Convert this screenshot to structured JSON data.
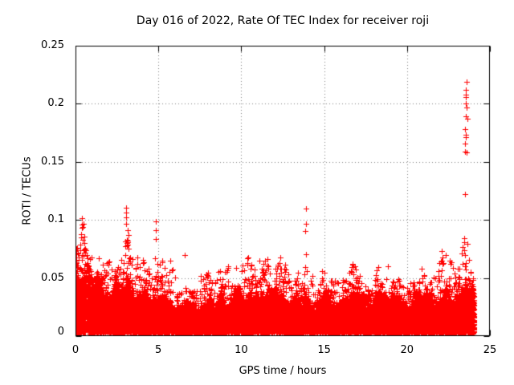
{
  "figure": {
    "background": "#ffffff",
    "border_color": "#000000",
    "grid_color": "#808080",
    "text_color": "#000000"
  },
  "chart_data": {
    "type": "scatter",
    "title": "Day 016 of 2022, Rate Of TEC Index for receiver roji",
    "xlabel": "GPS time / hours",
    "ylabel": "ROTI / TECUs",
    "xlim": [
      0,
      25
    ],
    "ylim": [
      0,
      0.25
    ],
    "xticks": [
      0,
      5,
      10,
      15,
      20,
      25
    ],
    "yticks": [
      0,
      0.05,
      0.1,
      0.15,
      0.2,
      0.25
    ],
    "grid": "dotted at inner major ticks",
    "legend": "none",
    "marker": {
      "shape": "plus",
      "size": 7,
      "color": "#ff0000"
    },
    "series_name": "ROTI",
    "time_range_hours": [
      0,
      24.06
    ],
    "band": {
      "description": "Dense band of ROTI samples; core_top = top of solid band, spike_top = typical max of sparse points above band, per 0.5 h from 0 to 24 h.",
      "hours_step": 0.5,
      "base": 0.003,
      "core_top": [
        0.056,
        0.05,
        0.045,
        0.041,
        0.038,
        0.037,
        0.044,
        0.04,
        0.035,
        0.032,
        0.031,
        0.029,
        0.028,
        0.028,
        0.027,
        0.027,
        0.028,
        0.029,
        0.029,
        0.031,
        0.032,
        0.033,
        0.033,
        0.035,
        0.034,
        0.032,
        0.03,
        0.031,
        0.03,
        0.028,
        0.03,
        0.028,
        0.029,
        0.031,
        0.032,
        0.03,
        0.03,
        0.029,
        0.028,
        0.028,
        0.027,
        0.028,
        0.029,
        0.029,
        0.033,
        0.033,
        0.031,
        0.035,
        0.034
      ],
      "spike_top": [
        0.095,
        0.085,
        0.068,
        0.062,
        0.058,
        0.056,
        0.09,
        0.068,
        0.058,
        0.06,
        0.062,
        0.052,
        0.05,
        0.048,
        0.044,
        0.046,
        0.048,
        0.05,
        0.048,
        0.056,
        0.058,
        0.06,
        0.06,
        0.065,
        0.06,
        0.06,
        0.05,
        0.052,
        0.055,
        0.048,
        0.056,
        0.048,
        0.052,
        0.06,
        0.058,
        0.052,
        0.054,
        0.056,
        0.048,
        0.054,
        0.048,
        0.05,
        0.056,
        0.052,
        0.073,
        0.06,
        0.058,
        0.074,
        0.052
      ]
    },
    "outliers": [
      [
        0.15,
        0.072
      ],
      [
        0.28,
        0.079
      ],
      [
        0.32,
        0.088
      ],
      [
        0.36,
        0.085
      ],
      [
        0.39,
        0.1015
      ],
      [
        0.4,
        0.096
      ],
      [
        0.41,
        0.093
      ],
      [
        0.45,
        0.083
      ],
      [
        0.52,
        0.08
      ],
      [
        0.6,
        0.075
      ],
      [
        0.7,
        0.07
      ],
      [
        0.85,
        0.066
      ],
      [
        0.95,
        0.068
      ],
      [
        1.4,
        0.067
      ],
      [
        1.65,
        0.0615
      ],
      [
        3.06,
        0.1105
      ],
      [
        3.06,
        0.1063
      ],
      [
        3.06,
        0.1022
      ],
      [
        3.06,
        0.0967
      ],
      [
        3.16,
        0.091
      ],
      [
        3.2,
        0.087
      ],
      [
        3.12,
        0.083
      ],
      [
        3.1,
        0.078
      ],
      [
        3.22,
        0.075
      ],
      [
        3.0,
        0.07
      ],
      [
        3.3,
        0.068
      ],
      [
        3.18,
        0.064
      ],
      [
        4.86,
        0.0988
      ],
      [
        4.86,
        0.0912
      ],
      [
        4.86,
        0.0836
      ],
      [
        4.8,
        0.067
      ],
      [
        4.95,
        0.062
      ],
      [
        5.73,
        0.065
      ],
      [
        6.6,
        0.07
      ],
      [
        9.7,
        0.0585
      ],
      [
        10.6,
        0.0615
      ],
      [
        11.1,
        0.065
      ],
      [
        11.6,
        0.066
      ],
      [
        12.2,
        0.06
      ],
      [
        13.8,
        0.053
      ],
      [
        13.85,
        0.0594
      ],
      [
        13.88,
        0.0905
      ],
      [
        13.9,
        0.1098
      ],
      [
        13.9,
        0.0967
      ],
      [
        13.91,
        0.0704
      ],
      [
        13.95,
        0.056
      ],
      [
        16.7,
        0.062
      ],
      [
        18.85,
        0.06
      ],
      [
        22.05,
        0.064
      ],
      [
        22.1,
        0.073
      ],
      [
        22.15,
        0.068
      ],
      [
        23.45,
        0.074
      ],
      [
        23.5,
        0.07
      ],
      [
        23.49,
        0.159
      ],
      [
        23.5,
        0.166
      ],
      [
        23.52,
        0.122
      ],
      [
        23.52,
        0.178
      ],
      [
        23.55,
        0.2
      ],
      [
        23.55,
        0.189
      ],
      [
        23.55,
        0.173
      ],
      [
        23.56,
        0.206
      ],
      [
        23.56,
        0.171
      ],
      [
        23.57,
        0.212
      ],
      [
        23.57,
        0.208
      ],
      [
        23.58,
        0.219
      ],
      [
        23.6,
        0.197
      ],
      [
        23.6,
        0.158
      ],
      [
        23.63,
        0.187
      ],
      [
        23.96,
        0.05
      ]
    ]
  }
}
